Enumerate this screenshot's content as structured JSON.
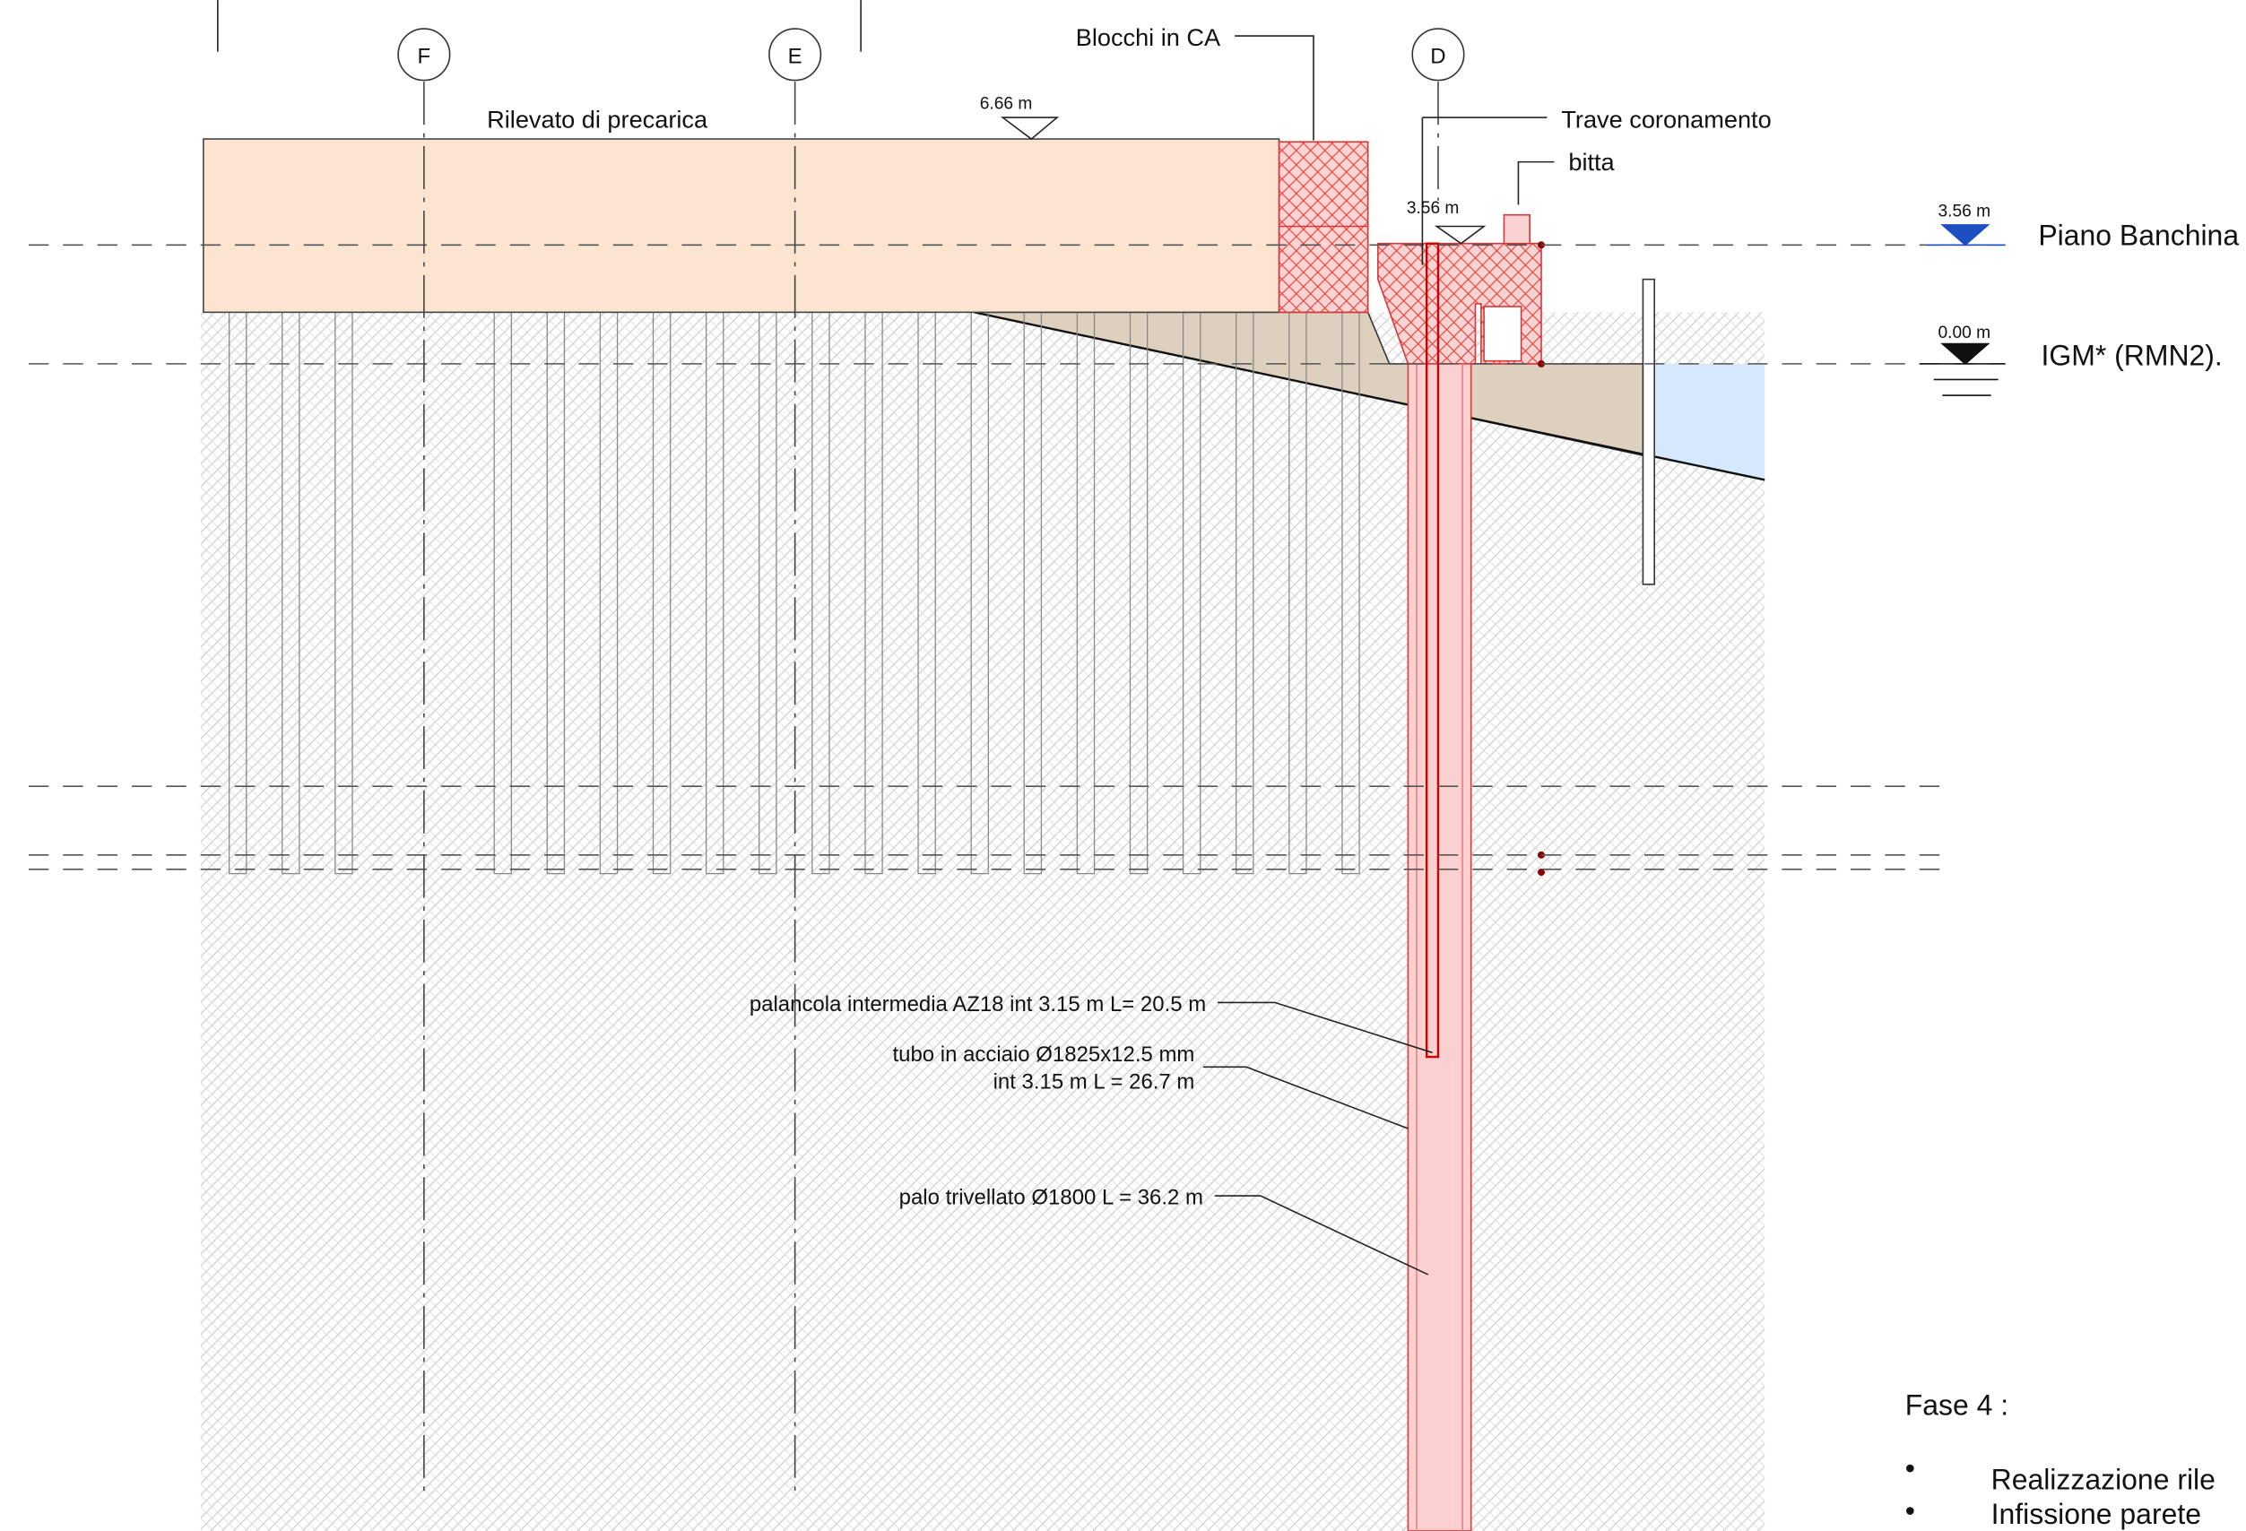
{
  "axes": [
    {
      "label": "F"
    },
    {
      "label": "E"
    },
    {
      "label": "D"
    }
  ],
  "labels": {
    "blocks": "Blocchi in CA",
    "fill": "Rilevato di precarica",
    "fill_level": "6.66 m",
    "beam": "Trave coronamento",
    "bollard": "bitta",
    "beam_level": "3.56 m"
  },
  "legend": [
    {
      "level": "3.56 m",
      "name": "Piano Banchina"
    },
    {
      "level": "0.00 m",
      "name": "IGM* (RMN2)."
    }
  ],
  "notes": {
    "sheet_pile": "palancola intermedia AZ18 int 3.15 m L= 20.5 m",
    "tube_1": "tubo in acciaio Ø1825x12.5 mm",
    "tube_2": "int 3.15 m L = 26.7 m",
    "pile": "palo trivellato Ø1800 L = 36.2 m"
  },
  "phase": {
    "title": "Fase 4 :",
    "items": [
      "Realizzazione rile",
      "Infissione parete"
    ]
  }
}
